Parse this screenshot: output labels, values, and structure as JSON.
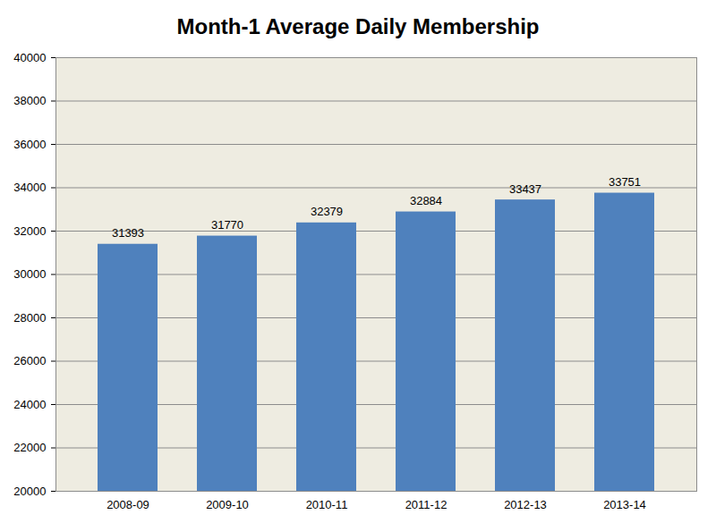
{
  "chart_data": {
    "type": "bar",
    "title": "Month-1 Average Daily Membership",
    "categories": [
      "2008-09",
      "2009-10",
      "2010-11",
      "2011-12",
      "2012-13",
      "2013-14"
    ],
    "values": [
      31393,
      31770,
      32379,
      32884,
      33437,
      33751
    ],
    "color": "#4F81BD",
    "ylim": [
      20000,
      40000
    ],
    "yticks": [
      20000,
      22000,
      24000,
      26000,
      28000,
      30000,
      32000,
      34000,
      36000,
      38000,
      40000
    ],
    "grid": true,
    "data_labels": true
  }
}
